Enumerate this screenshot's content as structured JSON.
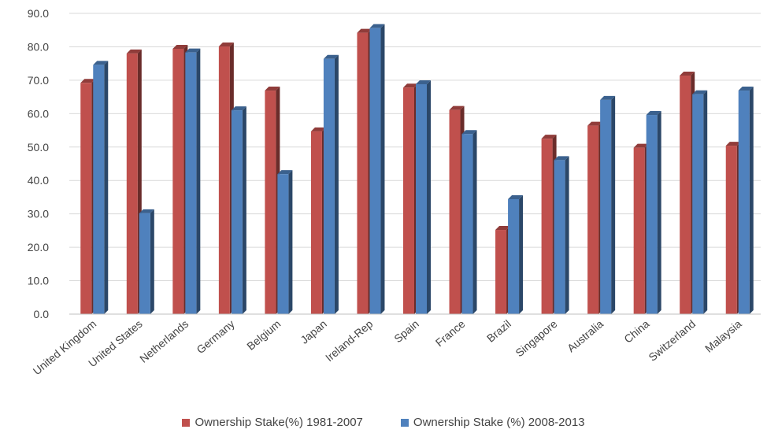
{
  "chart_data": {
    "type": "bar",
    "categories": [
      "United Kingdom",
      "United States",
      "Netherlands",
      "Germany",
      "Belgium",
      "Japan",
      "Ireland-Rep",
      "Spain",
      "France",
      "Brazil",
      "Singapore",
      "Australia",
      "China",
      "Switzerland",
      "Malaysia"
    ],
    "series": [
      {
        "name": "Ownership Stake(%) 1981-2007",
        "color": "#c0504d",
        "values": [
          69.2,
          78.0,
          79.4,
          80.1,
          66.9,
          54.7,
          84.2,
          67.8,
          61.1,
          25.2,
          52.5,
          56.4,
          49.8,
          71.4,
          50.4
        ]
      },
      {
        "name": "Ownership Stake (%) 2008-2013",
        "color": "#4f81bd",
        "values": [
          74.6,
          30.2,
          78.3,
          61.0,
          41.9,
          76.4,
          85.6,
          68.8,
          53.9,
          34.4,
          46.1,
          64.1,
          59.6,
          65.8,
          66.9
        ]
      }
    ],
    "yticks": [
      "0.0",
      "10.0",
      "20.0",
      "30.0",
      "40.0",
      "50.0",
      "60.0",
      "70.0",
      "80.0",
      "90.0"
    ],
    "ylim": [
      0,
      90
    ],
    "grid": true,
    "legend_position": "bottom"
  }
}
